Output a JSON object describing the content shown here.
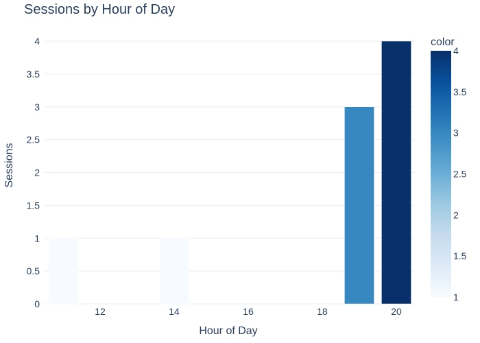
{
  "chart_data": {
    "type": "bar",
    "title": "Sessions by Hour of Day",
    "xlabel": "Hour of Day",
    "ylabel": "Sessions",
    "x": [
      11,
      14,
      19,
      20
    ],
    "values": [
      1,
      1,
      3,
      4
    ],
    "xlim": [
      10.5,
      20.5
    ],
    "ylim": [
      0,
      4
    ],
    "xticks": [
      12,
      14,
      16,
      18,
      20
    ],
    "xtick_labels": [
      "12",
      "14",
      "16",
      "18",
      "20"
    ],
    "yticks": [
      0,
      0.5,
      1,
      1.5,
      2,
      2.5,
      3,
      3.5,
      4
    ],
    "ytick_labels": [
      "0",
      "0.5",
      "1",
      "1.5",
      "2",
      "2.5",
      "3",
      "3.5",
      "4"
    ],
    "grid": true,
    "colorbar": {
      "title": "color",
      "range": [
        1,
        4
      ],
      "ticks": [
        1,
        1.5,
        2,
        2.5,
        3,
        3.5,
        4
      ],
      "tick_labels": [
        "1",
        "1.5",
        "2",
        "2.5",
        "3",
        "3.5",
        "4"
      ],
      "colorscale": [
        "#f7fbff",
        "#deebf7",
        "#c6dbef",
        "#9ecae1",
        "#6baed6",
        "#4292c6",
        "#2171b5",
        "#08519c",
        "#08306b"
      ]
    }
  }
}
